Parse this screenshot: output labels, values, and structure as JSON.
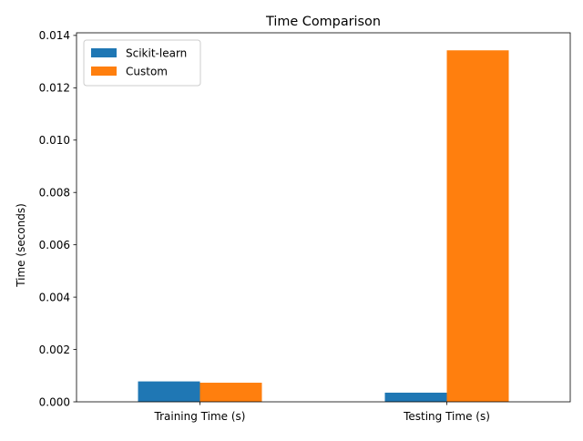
{
  "chart_data": {
    "type": "bar",
    "title": "Time Comparison",
    "xlabel": "",
    "ylabel": "Time (seconds)",
    "categories": [
      "Training Time (s)",
      "Testing Time (s)"
    ],
    "series": [
      {
        "name": "Scikit-learn",
        "color": "#1f77b4",
        "values": [
          0.00078,
          0.00035
        ]
      },
      {
        "name": "Custom",
        "color": "#ff7f0e",
        "values": [
          0.00073,
          0.01343
        ]
      }
    ],
    "ylim": [
      0,
      0.0141
    ],
    "yticks": [
      "0.000",
      "0.002",
      "0.004",
      "0.006",
      "0.008",
      "0.010",
      "0.012",
      "0.014"
    ],
    "grid": false,
    "legend_position": "top-left"
  }
}
